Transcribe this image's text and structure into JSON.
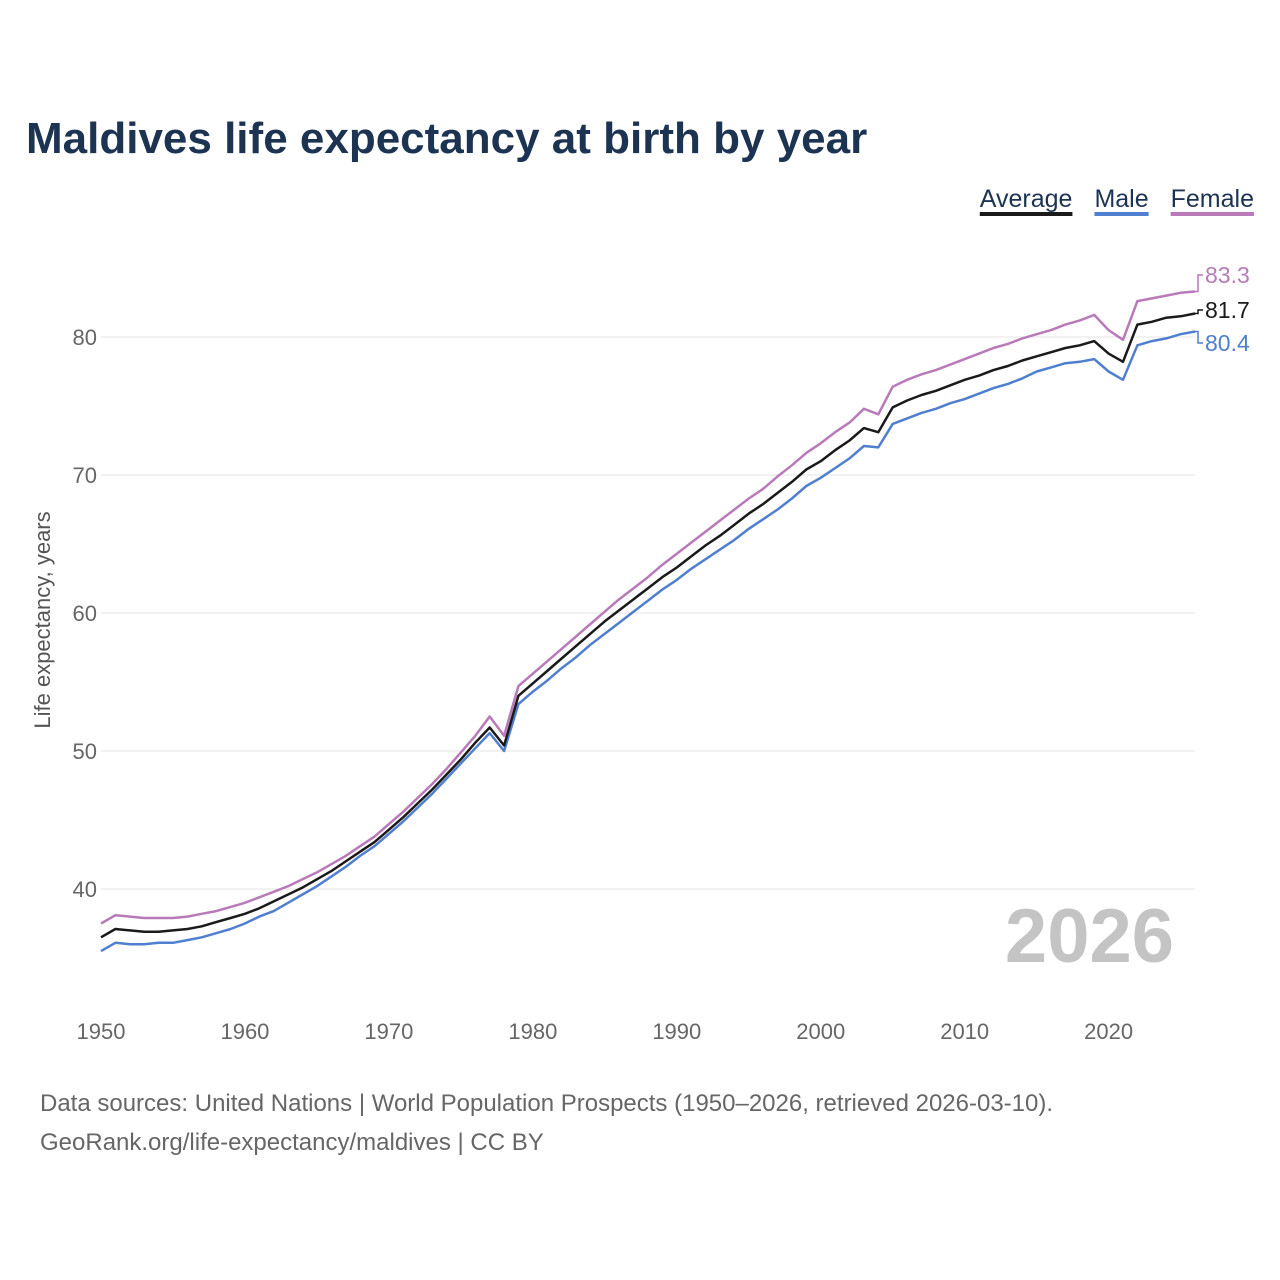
{
  "chart_data": {
    "type": "line",
    "title": "Maldives life expectancy at birth by year",
    "xlabel": "",
    "ylabel": "Life expectancy, years",
    "xlim": [
      1950,
      2026
    ],
    "ylim": [
      33,
      86
    ],
    "xticks": [
      1950,
      1960,
      1970,
      1980,
      1990,
      2000,
      2010,
      2020
    ],
    "yticks": [
      40,
      50,
      60,
      70,
      80
    ],
    "grid": true,
    "legend_position": "top-right",
    "year_label": "2026",
    "x_start": 1950,
    "series": [
      {
        "name": "Average",
        "color": "#1a1a1a",
        "end_label": "81.7",
        "values": [
          36.5,
          37.1,
          37.0,
          36.9,
          36.9,
          37.0,
          37.1,
          37.3,
          37.6,
          37.9,
          38.2,
          38.6,
          39.1,
          39.6,
          40.1,
          40.7,
          41.3,
          42.0,
          42.7,
          43.4,
          44.3,
          45.2,
          46.2,
          47.2,
          48.3,
          49.4,
          50.6,
          51.7,
          50.4,
          54.0,
          54.9,
          55.8,
          56.7,
          57.6,
          58.5,
          59.4,
          60.2,
          61.0,
          61.8,
          62.6,
          63.3,
          64.1,
          64.9,
          65.6,
          66.4,
          67.2,
          67.9,
          68.7,
          69.5,
          70.4,
          71.0,
          71.8,
          72.5,
          73.4,
          73.1,
          74.9,
          75.4,
          75.8,
          76.1,
          76.5,
          76.9,
          77.2,
          77.6,
          77.9,
          78.3,
          78.6,
          78.9,
          79.2,
          79.4,
          79.7,
          78.8,
          78.2,
          80.9,
          81.1,
          81.4,
          81.5,
          81.7
        ]
      },
      {
        "name": "Male",
        "color": "#4f7fce",
        "end_label": "80.4",
        "values": [
          35.5,
          36.1,
          36.0,
          36.0,
          36.1,
          36.1,
          36.3,
          36.5,
          36.8,
          37.1,
          37.5,
          38.0,
          38.4,
          39.0,
          39.6,
          40.2,
          40.9,
          41.6,
          42.4,
          43.1,
          44.0,
          44.9,
          45.9,
          46.9,
          48.0,
          49.1,
          50.2,
          51.3,
          50.0,
          53.4,
          54.3,
          55.1,
          56.0,
          56.8,
          57.7,
          58.5,
          59.3,
          60.1,
          60.9,
          61.7,
          62.4,
          63.2,
          63.9,
          64.6,
          65.3,
          66.1,
          66.8,
          67.5,
          68.3,
          69.2,
          69.8,
          70.5,
          71.2,
          72.1,
          72.0,
          73.7,
          74.1,
          74.5,
          74.8,
          75.2,
          75.5,
          75.9,
          76.3,
          76.6,
          77.0,
          77.5,
          77.8,
          78.1,
          78.2,
          78.4,
          77.5,
          76.9,
          79.4,
          79.7,
          79.9,
          80.2,
          80.4
        ]
      },
      {
        "name": "Female",
        "color": "#b87ab8",
        "end_label": "83.3",
        "values": [
          37.5,
          38.1,
          38.0,
          37.9,
          37.9,
          37.9,
          38.0,
          38.2,
          38.4,
          38.7,
          39.0,
          39.4,
          39.8,
          40.2,
          40.7,
          41.2,
          41.8,
          42.4,
          43.1,
          43.8,
          44.7,
          45.6,
          46.6,
          47.6,
          48.7,
          49.9,
          51.1,
          52.5,
          51.1,
          54.7,
          55.6,
          56.5,
          57.4,
          58.3,
          59.2,
          60.1,
          61.0,
          61.8,
          62.6,
          63.5,
          64.3,
          65.1,
          65.9,
          66.7,
          67.5,
          68.3,
          69.0,
          69.9,
          70.7,
          71.6,
          72.3,
          73.1,
          73.8,
          74.8,
          74.4,
          76.4,
          76.9,
          77.3,
          77.6,
          78.0,
          78.4,
          78.8,
          79.2,
          79.5,
          79.9,
          80.2,
          80.5,
          80.9,
          81.2,
          81.6,
          80.5,
          79.8,
          82.6,
          82.8,
          83.0,
          83.2,
          83.3
        ]
      }
    ]
  },
  "footer": {
    "line1": "Data sources: United Nations | World Population Prospects (1950–2026, retrieved 2026-03-10).",
    "line2": "GeoRank.org/life-expectancy/maldives | CC BY"
  }
}
